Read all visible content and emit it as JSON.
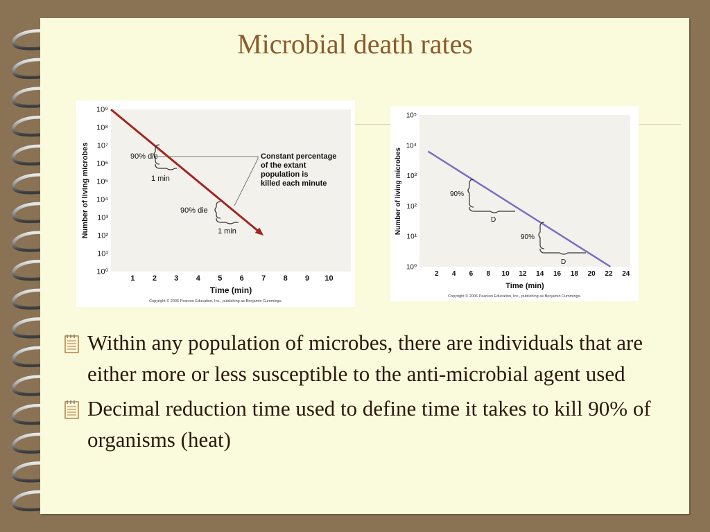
{
  "slide": {
    "title": "Microbial death rates",
    "bullets": [
      "Within any population of microbes, there are individuals that are either more or less susceptible to the anti-microbial agent used",
      "Decimal reduction time used to define time it takes to kill 90% of organisms (heat)"
    ],
    "bullet_icon": "notepad-icon",
    "colors": {
      "background": "#8a7255",
      "paper": "#fafadc",
      "title": "#8b5a2b"
    }
  },
  "chart_data": [
    {
      "type": "line",
      "title": "",
      "xlabel": "Time (min)",
      "ylabel": "Number of living microbes",
      "xlim": [
        0,
        11
      ],
      "ylim": [
        0,
        9
      ],
      "yscale": "log",
      "x_ticks": [
        1,
        2,
        3,
        4,
        5,
        6,
        7,
        8,
        9,
        10
      ],
      "y_ticks": [
        "10⁰",
        "10¹",
        "10²",
        "10³",
        "10⁴",
        "10⁵",
        "10⁶",
        "10⁷",
        "10⁸",
        "10⁹"
      ],
      "series": [
        {
          "x": [
            0,
            7
          ],
          "y": [
            9,
            2
          ],
          "color": "#a0261e"
        }
      ],
      "annotations": {
        "upper_die": "90% die",
        "upper_min": "1 min",
        "lower_die": "90% die",
        "lower_min": "1 min",
        "callout": [
          "Constant percentage",
          "of the extant",
          "population is",
          "killed each minute"
        ]
      },
      "copyright": "Copyright © 2006 Pearson Education, Inc., publishing as Benjamin Cummings."
    },
    {
      "type": "line",
      "title": "",
      "xlabel": "Time (min)",
      "ylabel": "Number of living microbes",
      "xlim": [
        0,
        24.5
      ],
      "ylim": [
        0,
        5
      ],
      "yscale": "log",
      "x_ticks": [
        2,
        4,
        6,
        8,
        10,
        12,
        14,
        16,
        18,
        20,
        22,
        24
      ],
      "y_ticks": [
        "10⁰",
        "10¹",
        "10²",
        "10³",
        "10⁴",
        "10⁵"
      ],
      "series": [
        {
          "x": [
            1,
            22.2
          ],
          "y": [
            3.8,
            0
          ],
          "color": "#7a6cc0"
        }
      ],
      "annotations": {
        "upper_pct": "90%",
        "upper_d": "D",
        "lower_pct": "90%",
        "lower_d": "D"
      },
      "copyright": "Copyright © 2006 Pearson Education, Inc., publishing as Benjamin Cummings."
    }
  ]
}
